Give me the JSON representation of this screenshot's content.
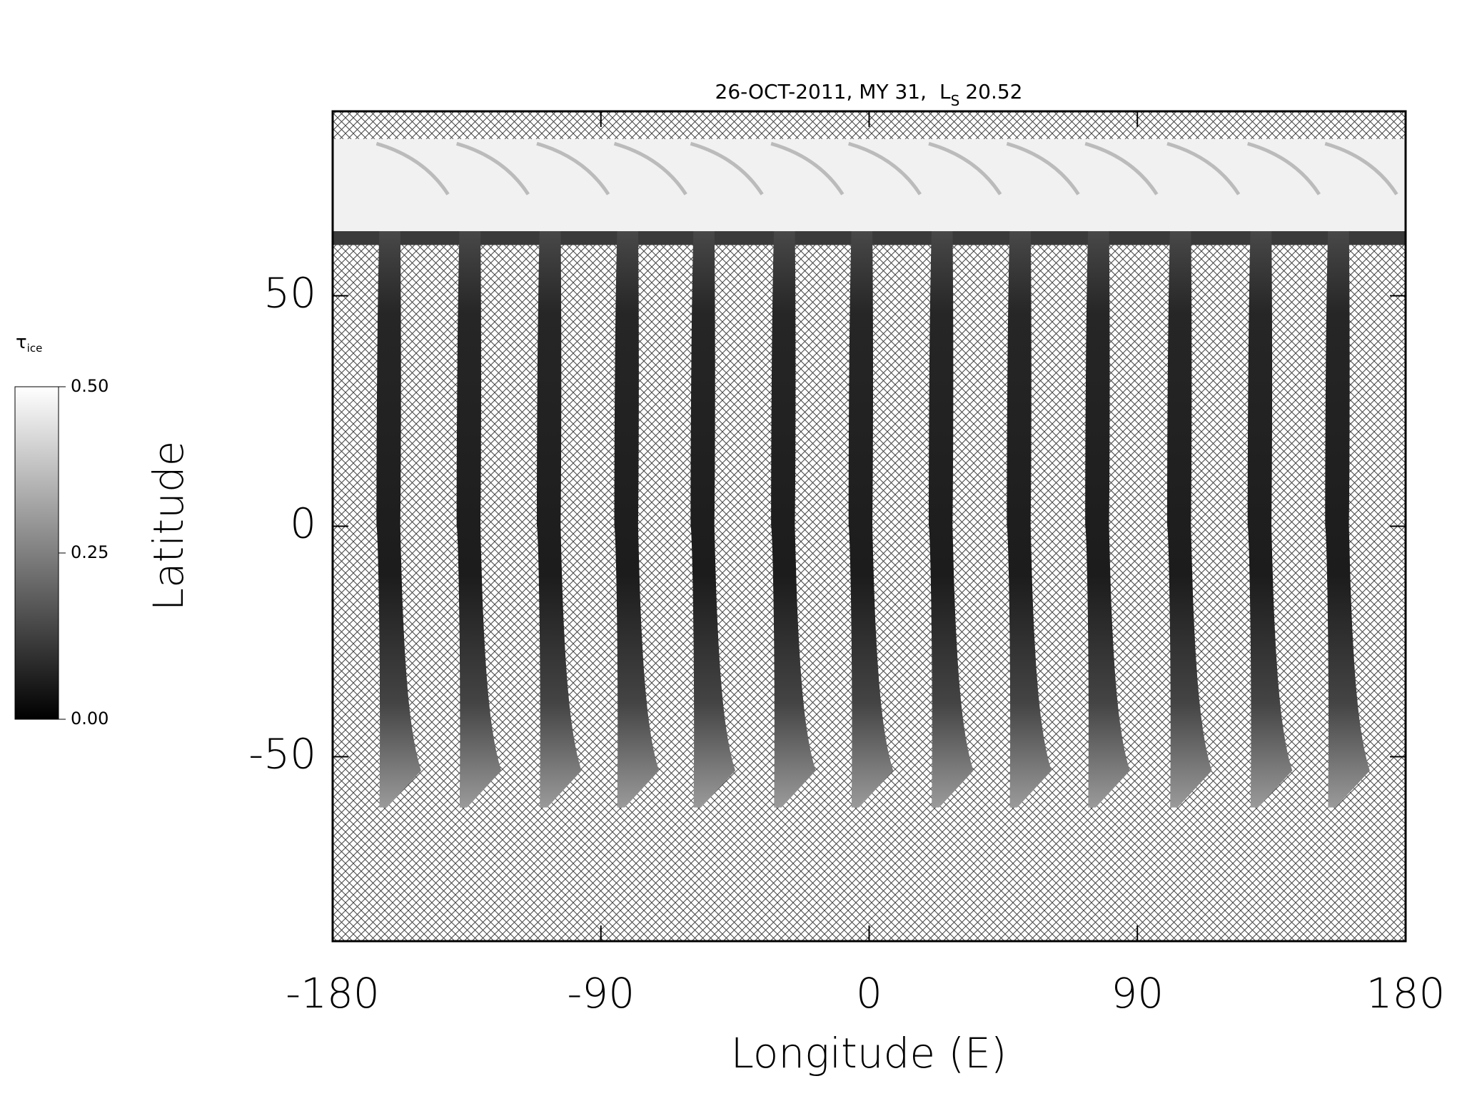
{
  "chart_data": {
    "type": "map",
    "title": "26-OCT-2011, MY 31,",
    "ls_label": "L",
    "ls_subscript": "S",
    "ls_value": "20.52",
    "xlabel": "Longitude (E)",
    "ylabel": "Latitude",
    "xlim": [
      -180,
      180
    ],
    "xticks": [
      -180,
      -90,
      0,
      90,
      180
    ],
    "ylim": [
      -90,
      90
    ],
    "yticks": [
      -50,
      0,
      50
    ],
    "swath_longitudes": [
      -161.3,
      -134.4,
      -107.5,
      -81.5,
      -55.9,
      -28.9,
      -2.9,
      24,
      50.2,
      76.5,
      104,
      131,
      157
    ],
    "colorbar": {
      "label": "τ",
      "label_subscript": "ice",
      "clim": [
        0,
        0.5
      ],
      "ticks": [
        {
          "value": 0,
          "label": "0.00"
        },
        {
          "value": 0.25,
          "label": "0.25"
        },
        {
          "value": 0.5,
          "label": "0.50"
        }
      ]
    }
  }
}
